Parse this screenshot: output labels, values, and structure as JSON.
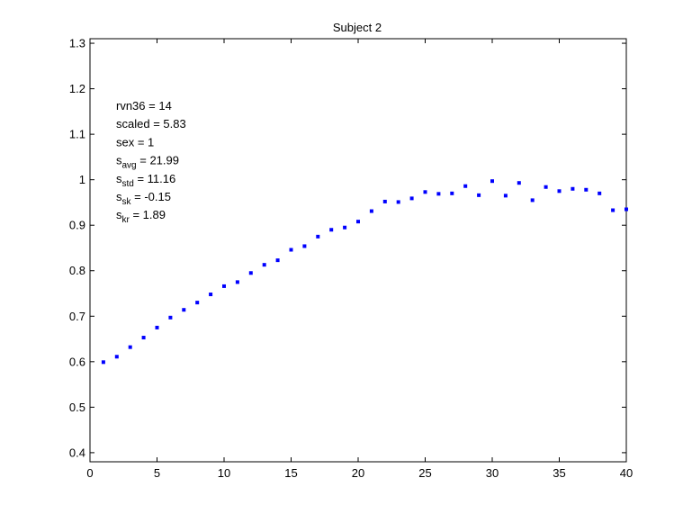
{
  "chart_data": {
    "type": "scatter",
    "title": "Subject 2",
    "xlabel": "",
    "ylabel": "",
    "xlim": [
      0,
      40
    ],
    "ylim": [
      0.38,
      1.31
    ],
    "xticks": [
      0,
      5,
      10,
      15,
      20,
      25,
      30,
      35,
      40
    ],
    "yticks": [
      0.4,
      0.5,
      0.6,
      0.7,
      0.8,
      0.9,
      1,
      1.1,
      1.2,
      1.3
    ],
    "grid": false,
    "marker_color": "#0000ff",
    "series": [
      {
        "x": [
          1,
          2,
          3,
          4,
          5,
          6,
          7,
          8,
          9,
          10,
          11,
          12,
          13,
          14,
          15,
          16,
          17,
          18,
          19,
          20,
          21,
          22,
          23,
          24,
          25,
          26,
          27,
          28,
          29,
          30,
          31,
          32,
          33,
          34,
          35,
          36,
          37,
          38,
          39,
          40
        ],
        "y": [
          0.599,
          0.611,
          0.632,
          0.653,
          0.675,
          0.697,
          0.714,
          0.73,
          0.748,
          0.766,
          0.775,
          0.795,
          0.813,
          0.823,
          0.846,
          0.854,
          0.875,
          0.89,
          0.895,
          0.908,
          0.931,
          0.952,
          0.951,
          0.959,
          0.973,
          0.969,
          0.97,
          0.986,
          0.966,
          0.997,
          0.965,
          0.993,
          0.955,
          0.984,
          0.975,
          0.98,
          0.978,
          0.97,
          0.933,
          0.935
        ]
      }
    ],
    "annotations": [
      {
        "base": "rvn36 = 14",
        "sub": "",
        "rest": ""
      },
      {
        "base": "scaled = 5.83",
        "sub": "",
        "rest": ""
      },
      {
        "base": "sex   = 1",
        "sub": "",
        "rest": ""
      },
      {
        "base": "s",
        "sub": "avg",
        "rest": " = 21.99"
      },
      {
        "base": "s",
        "sub": "std",
        "rest": " = 11.16"
      },
      {
        "base": "s",
        "sub": "sk",
        "rest": " = -0.15"
      },
      {
        "base": "s",
        "sub": "kr",
        "rest": " = 1.89"
      }
    ]
  }
}
